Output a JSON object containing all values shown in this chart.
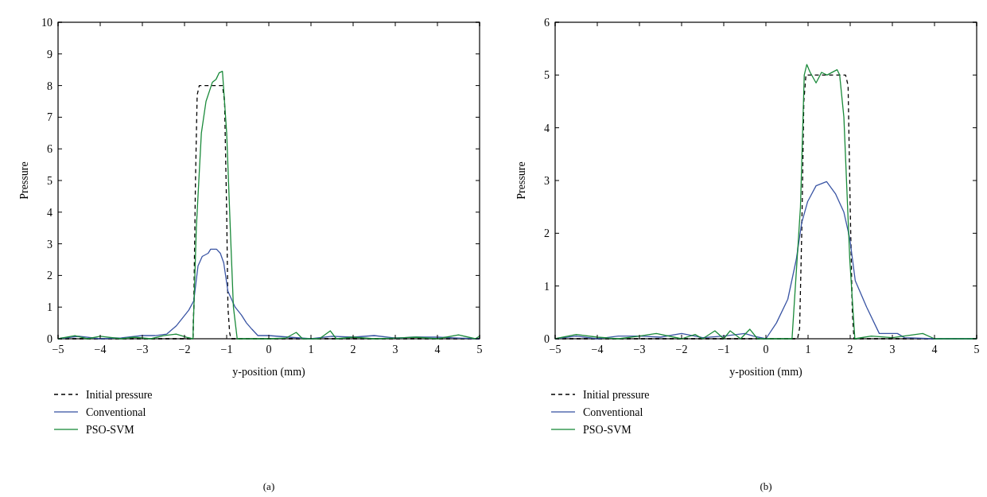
{
  "chart_data": [
    {
      "type": "line",
      "xlabel": "y-position (mm)",
      "ylabel": "Pressure",
      "annotations": [
        "(a)"
      ],
      "xlim": [
        -5,
        5
      ],
      "ylim": [
        0,
        10
      ],
      "xticks": [
        {
          "value": -5,
          "label": "−5"
        },
        {
          "value": -4,
          "label": "−4"
        },
        {
          "value": -3,
          "label": "−3"
        },
        {
          "value": -2,
          "label": "−2"
        },
        {
          "value": -1,
          "label": "−1"
        },
        0,
        1,
        2,
        3,
        4,
        5
      ],
      "yticks": [
        0,
        1,
        2,
        3,
        4,
        5,
        6,
        7,
        8,
        9,
        10
      ],
      "grid": false,
      "legend": "bottom",
      "series": [
        {
          "name": "Initial pressure",
          "color": "#000000",
          "line_style": "dashed",
          "x": [
            -5,
            -1.8,
            -1.78,
            -1.74,
            -1.7,
            -1.65,
            -1.1,
            -1.05,
            -1.0,
            -0.97,
            -0.93,
            -0.9,
            5
          ],
          "values": [
            0,
            0,
            1,
            5,
            7.7,
            8,
            8,
            7.5,
            4,
            1,
            0.2,
            0,
            0
          ]
        },
        {
          "name": "Conventional",
          "color": "#3a55a4",
          "line_style": "solid",
          "x": [
            -5,
            -4.5,
            -4,
            -3.5,
            -3,
            -2.7,
            -2.42,
            -2.2,
            -2.08,
            -1.9,
            -1.78,
            -1.68,
            -1.58,
            -1.44,
            -1.38,
            -1.24,
            -1.15,
            -1.07,
            -0.97,
            -0.8,
            -0.65,
            -0.53,
            -0.4,
            -0.26,
            0,
            0.48,
            1,
            1.5,
            2,
            2.5,
            3,
            3.5,
            4,
            4.5,
            5
          ],
          "values": [
            0,
            0.08,
            0,
            0.03,
            0.1,
            0.1,
            0.15,
            0.4,
            0.6,
            0.9,
            1.2,
            2.3,
            2.6,
            2.7,
            2.83,
            2.83,
            2.7,
            2.4,
            1.5,
            1.0,
            0.75,
            0.5,
            0.3,
            0.1,
            0.1,
            0.05,
            0,
            0.08,
            0.05,
            0.1,
            0.02,
            0.05,
            0.05,
            0.02,
            0
          ]
        },
        {
          "name": "PSO-SVM",
          "color": "#1a8a3a",
          "line_style": "solid",
          "x": [
            -5,
            -4.6,
            -4.3,
            -4,
            -3.5,
            -3.2,
            -2.8,
            -2.5,
            -2.2,
            -1.95,
            -1.8,
            -1.72,
            -1.6,
            -1.49,
            -1.34,
            -1.25,
            -1.18,
            -1.1,
            -1.0,
            -0.9,
            -0.84,
            -0.75,
            -0.5,
            0,
            0.4,
            0.65,
            0.8,
            1.2,
            1.46,
            1.6,
            2,
            2.5,
            3,
            3.5,
            4,
            4.5,
            4.9,
            5
          ],
          "values": [
            0,
            0.1,
            0,
            0.08,
            0,
            0.05,
            0,
            0.1,
            0.15,
            0.05,
            0,
            3.5,
            6.5,
            7.5,
            8.1,
            8.2,
            8.4,
            8.45,
            6.5,
            3,
            1,
            0,
            0,
            0,
            0.02,
            0.2,
            0,
            0,
            0.25,
            0,
            0.05,
            0,
            0.02,
            0.05,
            0,
            0.12,
            0,
            0.08
          ]
        }
      ]
    },
    {
      "type": "line",
      "xlabel": "y-position (mm)",
      "ylabel": "Pressure",
      "annotations": [
        "(b)"
      ],
      "xlim": [
        -5,
        5
      ],
      "ylim": [
        0,
        6
      ],
      "xticks": [
        {
          "value": -5,
          "label": "−5"
        },
        {
          "value": -4,
          "label": "−4"
        },
        {
          "value": -3,
          "label": "−3"
        },
        {
          "value": -2,
          "label": "−2"
        },
        {
          "value": -1,
          "label": "−1"
        },
        0,
        1,
        2,
        3,
        4,
        5
      ],
      "yticks": [
        0,
        1,
        2,
        3,
        4,
        5,
        6
      ],
      "grid": false,
      "legend": "bottom",
      "series": [
        {
          "name": "Initial pressure",
          "color": "#000000",
          "line_style": "dashed",
          "x": [
            -5,
            0.75,
            0.8,
            0.85,
            0.9,
            0.95,
            1.89,
            1.95,
            2.0,
            2.05,
            2.09,
            5
          ],
          "values": [
            0,
            0,
            0.2,
            2,
            4.5,
            5,
            5,
            4.8,
            2.5,
            0.5,
            0,
            0
          ]
        },
        {
          "name": "Conventional",
          "color": "#3a55a4",
          "line_style": "solid",
          "x": [
            -5,
            -4.5,
            -4,
            -3.5,
            -3,
            -2.5,
            -2,
            -1.5,
            -1,
            -0.5,
            -0.3,
            0,
            0.25,
            0.52,
            0.72,
            0.85,
            0.99,
            1.19,
            1.44,
            1.65,
            1.85,
            1.99,
            2.12,
            2.39,
            2.69,
            3.12,
            3.29,
            4,
            5
          ],
          "values": [
            0,
            0.05,
            0,
            0.05,
            0.05,
            0.03,
            0.1,
            0.02,
            0.05,
            0.1,
            0.05,
            0,
            0.3,
            0.75,
            1.5,
            2.2,
            2.6,
            2.9,
            2.98,
            2.75,
            2.4,
            1.9,
            1.1,
            0.6,
            0.1,
            0.1,
            0.02,
            0,
            0
          ]
        },
        {
          "name": "PSO-SVM",
          "color": "#1a8a3a",
          "line_style": "solid",
          "x": [
            -5,
            -4.5,
            -4,
            -3.5,
            -3,
            -2.6,
            -2,
            -1.68,
            -1.5,
            -1.21,
            -1.0,
            -0.85,
            -0.6,
            -0.38,
            -0.2,
            0.62,
            0.82,
            0.91,
            0.97,
            1.05,
            1.19,
            1.32,
            1.45,
            1.69,
            1.75,
            1.85,
            1.99,
            2.11,
            2.5,
            3,
            3.72,
            4,
            5
          ],
          "values": [
            0,
            0.08,
            0.03,
            0,
            0.05,
            0.1,
            0,
            0.08,
            0,
            0.15,
            0,
            0.15,
            0,
            0.18,
            0,
            0,
            2.5,
            5.0,
            5.2,
            5.05,
            4.85,
            5.05,
            5.0,
            5.1,
            5.0,
            4.2,
            1.5,
            0,
            0.05,
            0.02,
            0.1,
            0,
            0
          ]
        }
      ]
    }
  ]
}
